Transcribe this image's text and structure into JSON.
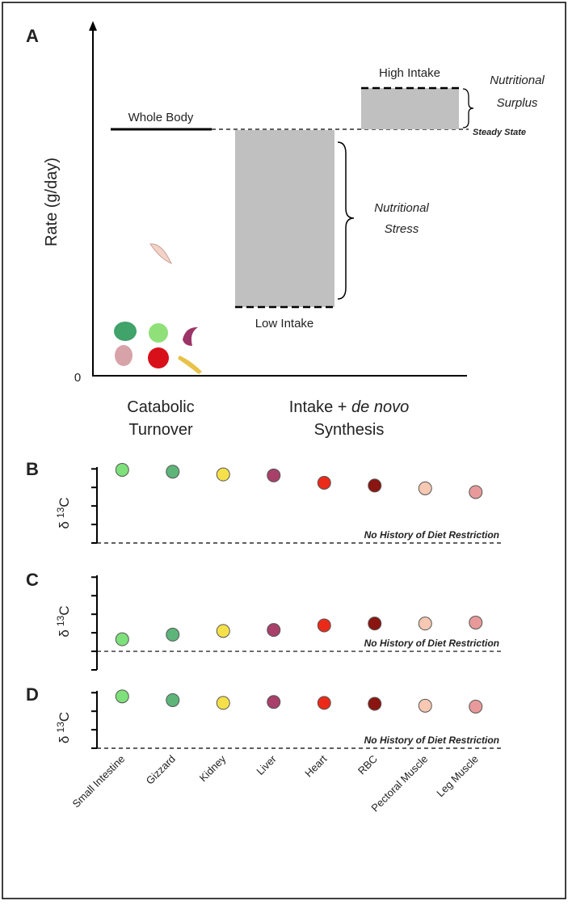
{
  "panel_a": {
    "label": "A",
    "y_axis_label": "Rate (g/day)",
    "origin_label": "0",
    "whole_body": "Whole Body",
    "high_intake": "High Intake",
    "surplus_line1": "Nutritional",
    "surplus_line2": "Surplus",
    "steady_state": "Steady State",
    "stress_line1": "Nutritional",
    "stress_line2": "Stress",
    "low_intake": "Low Intake",
    "catabolic_line1": "Catabolic",
    "catabolic_line2": "Turnover",
    "intake_prefix": "Intake + ",
    "intake_italic": "de novo",
    "intake_line2": "Synthesis"
  },
  "chart_data": {
    "type": "scatter",
    "categories": [
      "Small Intestine",
      "Gizzard",
      "Kidney",
      "Liver",
      "Heart",
      "RBC",
      "Pectoral Muscle",
      "Leg Muscle"
    ],
    "colors": [
      "#7ee07a",
      "#5db57a",
      "#f5e04a",
      "#a8406a",
      "#ec2a1a",
      "#8b1510",
      "#f7c8b2",
      "#e89a9a"
    ],
    "ylabel_symbol": "δ",
    "ylabel_sup": "13",
    "ylabel_element": "C",
    "panels": [
      {
        "label": "B",
        "annotation": "No History of Diet Restriction",
        "values": [
          3.95,
          3.85,
          3.7,
          3.65,
          3.25,
          3.1,
          2.95,
          2.75
        ],
        "ylim": [
          0,
          4.1
        ],
        "yticks": [
          0,
          1,
          2,
          3,
          4
        ]
      },
      {
        "label": "C",
        "annotation": "No History of Diet Restriction",
        "values": [
          0.65,
          0.9,
          1.1,
          1.15,
          1.4,
          1.5,
          1.5,
          1.55
        ],
        "ylim": [
          -1,
          4.1
        ],
        "yticks": [
          -1,
          0,
          1,
          2,
          3,
          4
        ]
      },
      {
        "label": "D",
        "annotation": "No History of Diet Restriction",
        "values": [
          2.8,
          2.6,
          2.45,
          2.5,
          2.45,
          2.4,
          2.3,
          2.25
        ],
        "ylim": [
          0,
          3.1
        ],
        "yticks": [
          0,
          1,
          2,
          3
        ]
      }
    ]
  }
}
